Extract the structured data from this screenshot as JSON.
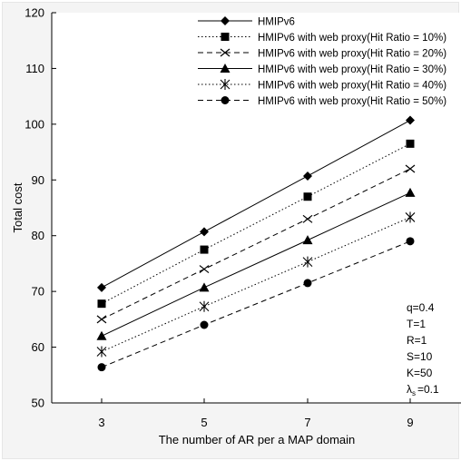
{
  "chart_data": {
    "type": "line",
    "xlabel": "The number of AR per a MAP domain",
    "ylabel": "Total cost",
    "x": [
      3,
      5,
      7,
      9
    ],
    "xticks": [
      "3",
      "5",
      "7",
      "9"
    ],
    "ylim": [
      50,
      120
    ],
    "yticks": [
      "50",
      "60",
      "70",
      "80",
      "90",
      "100",
      "110",
      "120"
    ],
    "grid": false,
    "legend_position": "top-right",
    "series": [
      {
        "name": "HMIPv6",
        "values": [
          70.7,
          80.7,
          90.7,
          100.7
        ],
        "marker": "diamond",
        "dash": "solid"
      },
      {
        "name": "HMIPv6 with web proxy(Hit Ratio = 10%)",
        "values": [
          67.8,
          77.5,
          87.0,
          96.5
        ],
        "marker": "square",
        "dash": "dotted"
      },
      {
        "name": "HMIPv6 with web proxy(Hit Ratio = 20%)",
        "values": [
          65.0,
          74.0,
          83.0,
          92.0
        ],
        "marker": "x",
        "dash": "dashed"
      },
      {
        "name": "HMIPv6 with web proxy(Hit Ratio = 30%)",
        "values": [
          62.0,
          70.7,
          79.2,
          87.7
        ],
        "marker": "triangle",
        "dash": "solid"
      },
      {
        "name": "HMIPv6 with web proxy(Hit Ratio = 40%)",
        "values": [
          59.2,
          67.3,
          75.3,
          83.3
        ],
        "marker": "asterisk",
        "dash": "dotted"
      },
      {
        "name": "HMIPv6 with web proxy(Hit Ratio = 50%)",
        "values": [
          56.4,
          64.0,
          71.5,
          79.0
        ],
        "marker": "circle",
        "dash": "dashed"
      }
    ],
    "annotations": [
      "q=0.4",
      "T=1",
      "R=1",
      "S=10",
      "K=50"
    ],
    "lambda_annotation": {
      "symbol": "λ",
      "subscript": "s",
      "value": "=0.1"
    }
  }
}
